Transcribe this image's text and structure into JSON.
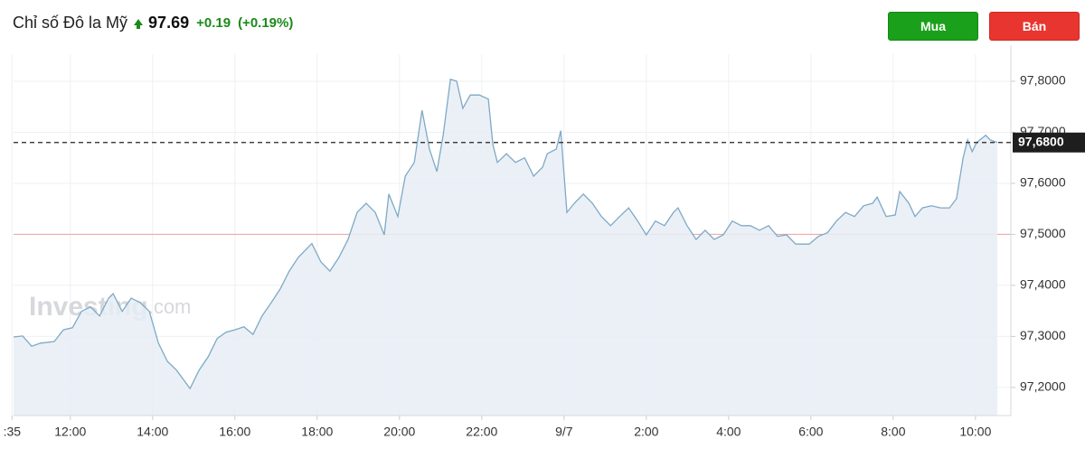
{
  "chart_data": {
    "type": "line",
    "title": "Chỉ số Đô la Mỹ",
    "price": "97.69",
    "change": "+0.19",
    "change_percent": "(+0.19%)",
    "x": [
      10.62,
      10.84,
      11.06,
      11.28,
      11.61,
      11.83,
      12.05,
      12.27,
      12.49,
      12.71,
      12.93,
      13.04,
      13.26,
      13.48,
      13.7,
      13.92,
      14.14,
      14.36,
      14.58,
      14.91,
      15.13,
      15.35,
      15.57,
      15.78,
      16.0,
      16.22,
      16.44,
      16.66,
      16.88,
      17.1,
      17.32,
      17.54,
      17.76,
      17.87,
      18.09,
      18.31,
      18.53,
      18.75,
      18.97,
      19.19,
      19.41,
      19.63,
      19.74,
      19.96,
      20.14,
      20.36,
      20.55,
      20.73,
      20.91,
      21.06,
      21.24,
      21.39,
      21.54,
      21.72,
      21.94,
      22.16,
      22.27,
      22.38,
      22.6,
      22.82,
      23.04,
      23.26,
      23.48,
      23.59,
      23.81,
      23.92,
      24.07,
      24.25,
      24.47,
      24.69,
      24.91,
      25.13,
      25.35,
      25.57,
      25.79,
      26.0,
      26.22,
      26.44,
      26.66,
      26.77,
      26.99,
      27.21,
      27.43,
      27.65,
      27.87,
      28.09,
      28.31,
      28.53,
      28.75,
      28.97,
      29.19,
      29.41,
      29.63,
      29.96,
      30.18,
      30.4,
      30.62,
      30.84,
      31.06,
      31.28,
      31.5,
      31.61,
      31.83,
      32.05,
      32.16,
      32.38,
      32.53,
      32.71,
      32.93,
      33.15,
      33.37,
      33.54,
      33.7,
      33.81,
      33.92,
      34.03,
      34.25,
      34.36,
      34.53
    ],
    "series": [
      {
        "color": "#7ea9c6",
        "fill": "#e6edf5",
        "values": [
          97.299,
          97.301,
          97.281,
          97.287,
          97.29,
          97.313,
          97.317,
          97.349,
          97.358,
          97.34,
          97.375,
          97.384,
          97.349,
          97.375,
          97.366,
          97.349,
          97.287,
          97.251,
          97.234,
          97.198,
          97.234,
          97.26,
          97.296,
          97.308,
          97.313,
          97.319,
          97.304,
          97.34,
          97.366,
          97.393,
          97.428,
          97.455,
          97.473,
          97.482,
          97.446,
          97.428,
          97.455,
          97.49,
          97.543,
          97.561,
          97.543,
          97.499,
          97.579,
          97.535,
          97.614,
          97.641,
          97.743,
          97.667,
          97.623,
          97.694,
          97.804,
          97.8,
          97.747,
          97.773,
          97.773,
          97.765,
          97.676,
          97.641,
          97.658,
          97.641,
          97.65,
          97.614,
          97.632,
          97.658,
          97.667,
          97.703,
          97.543,
          97.561,
          97.579,
          97.561,
          97.535,
          97.517,
          97.535,
          97.552,
          97.526,
          97.499,
          97.526,
          97.517,
          97.543,
          97.552,
          97.517,
          97.49,
          97.508,
          97.49,
          97.499,
          97.526,
          97.517,
          97.517,
          97.508,
          97.517,
          97.496,
          97.499,
          97.481,
          97.481,
          97.496,
          97.503,
          97.526,
          97.543,
          97.535,
          97.556,
          97.561,
          97.573,
          97.535,
          97.538,
          97.584,
          97.561,
          97.535,
          97.552,
          97.556,
          97.552,
          97.552,
          97.57,
          97.65,
          97.685,
          97.662,
          97.68,
          97.694,
          97.685,
          97.68
        ]
      }
    ],
    "xlim": [
      10.62,
      34.86
    ],
    "xticks": [
      {
        "value": 10.583,
        "label": ":35"
      },
      {
        "value": 12,
        "label": "12:00"
      },
      {
        "value": 14,
        "label": "14:00"
      },
      {
        "value": 16,
        "label": "16:00"
      },
      {
        "value": 18,
        "label": "18:00"
      },
      {
        "value": 20,
        "label": "20:00"
      },
      {
        "value": 22,
        "label": "22:00"
      },
      {
        "value": 24,
        "label": "9/7"
      },
      {
        "value": 26,
        "label": "2:00"
      },
      {
        "value": 28,
        "label": "4:00"
      },
      {
        "value": 30,
        "label": "6:00"
      },
      {
        "value": 32,
        "label": "8:00"
      },
      {
        "value": 34,
        "label": "10:00"
      }
    ],
    "ylim": [
      97.145,
      97.853
    ],
    "yticks": [
      {
        "value": 97.2,
        "label": "97,2000"
      },
      {
        "value": 97.3,
        "label": "97,3000"
      },
      {
        "value": 97.4,
        "label": "97,4000"
      },
      {
        "value": 97.5,
        "label": "97,5000"
      },
      {
        "value": 97.6,
        "label": "97,6000"
      },
      {
        "value": 97.7,
        "label": "97,7000"
      },
      {
        "value": 97.8,
        "label": "97,8000"
      }
    ],
    "grid": true,
    "current_value": {
      "value": 97.68,
      "label": "97,6800"
    },
    "reference_line": {
      "value": 97.5,
      "color": "#f0a0a0"
    }
  },
  "buttons": {
    "buy": "Mua",
    "sell": "Bán"
  },
  "watermark": {
    "brand": "Investing",
    "suffix": ".com"
  }
}
